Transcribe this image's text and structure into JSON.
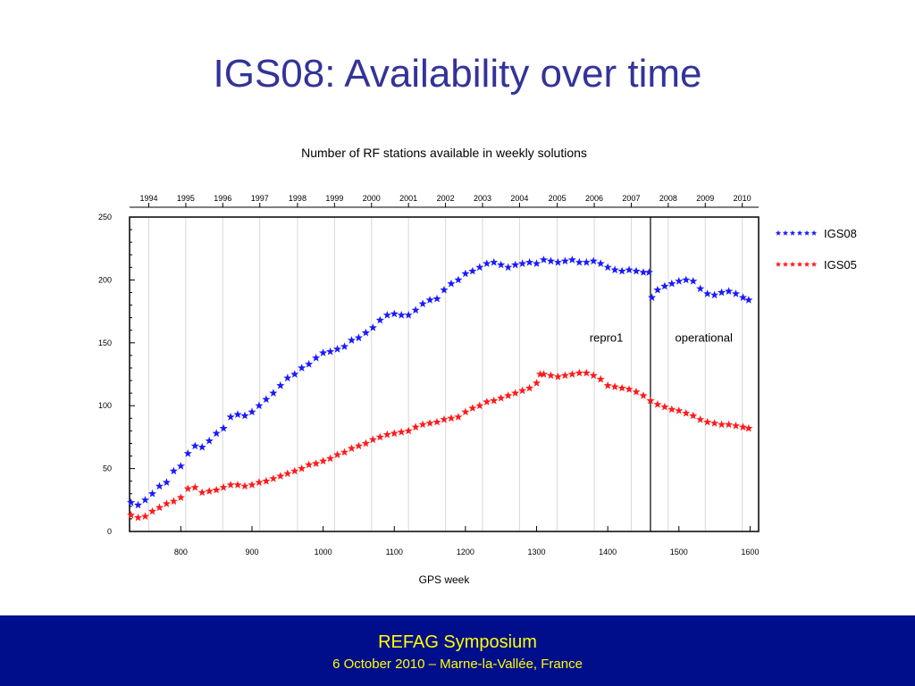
{
  "slide": {
    "title": "IGS08: Availability over time"
  },
  "footer": {
    "title": "REFAG Symposium",
    "subtitle": "6 October 2010 – Marne-la-Vallée, France"
  },
  "colors": {
    "title": "#333399",
    "footer_bg": "#000e8c",
    "footer_text": "#ffff00",
    "igs08": "#1a1aff",
    "igs05": "#ff1a1a"
  },
  "chart_data": {
    "type": "scatter",
    "title": "Number of RF stations available in weekly solutions",
    "xlabel": "GPS week",
    "ylabel": "",
    "xlim": [
      728,
      1612
    ],
    "ylim": [
      0,
      250
    ],
    "x_ticks": [
      800,
      900,
      1000,
      1100,
      1200,
      1300,
      1400,
      1500,
      1600
    ],
    "y_ticks": [
      0,
      50,
      100,
      150,
      200,
      250
    ],
    "top_axis_years": [
      {
        "label": "1994",
        "week": 755
      },
      {
        "label": "1995",
        "week": 807
      },
      {
        "label": "1996",
        "week": 859
      },
      {
        "label": "1997",
        "week": 911
      },
      {
        "label": "1998",
        "week": 964
      },
      {
        "label": "1999",
        "week": 1016
      },
      {
        "label": "2000",
        "week": 1068
      },
      {
        "label": "2001",
        "week": 1120
      },
      {
        "label": "2002",
        "week": 1172
      },
      {
        "label": "2003",
        "week": 1224
      },
      {
        "label": "2004",
        "week": 1276
      },
      {
        "label": "2005",
        "week": 1329
      },
      {
        "label": "2006",
        "week": 1381
      },
      {
        "label": "2007",
        "week": 1433
      },
      {
        "label": "2008",
        "week": 1485
      },
      {
        "label": "2009",
        "week": 1537
      },
      {
        "label": "2010",
        "week": 1589
      }
    ],
    "grid": "vertical",
    "divider_week": 1460,
    "annotations": [
      {
        "text": "repro1",
        "week": 1398,
        "y": 151
      },
      {
        "text": "operational",
        "week": 1535,
        "y": 151
      }
    ],
    "legend": "right",
    "series": [
      {
        "name": "IGS08",
        "marker": "star",
        "points": [
          [
            730,
            23
          ],
          [
            740,
            21
          ],
          [
            750,
            25
          ],
          [
            760,
            30
          ],
          [
            770,
            36
          ],
          [
            780,
            39
          ],
          [
            790,
            48
          ],
          [
            800,
            52
          ],
          [
            810,
            62
          ],
          [
            820,
            68
          ],
          [
            830,
            67
          ],
          [
            840,
            72
          ],
          [
            850,
            78
          ],
          [
            860,
            82
          ],
          [
            870,
            91
          ],
          [
            880,
            93
          ],
          [
            890,
            92
          ],
          [
            900,
            95
          ],
          [
            910,
            100
          ],
          [
            920,
            105
          ],
          [
            930,
            110
          ],
          [
            940,
            116
          ],
          [
            950,
            122
          ],
          [
            960,
            125
          ],
          [
            970,
            130
          ],
          [
            980,
            133
          ],
          [
            990,
            138
          ],
          [
            1000,
            142
          ],
          [
            1010,
            143
          ],
          [
            1020,
            145
          ],
          [
            1030,
            147
          ],
          [
            1040,
            152
          ],
          [
            1050,
            154
          ],
          [
            1060,
            158
          ],
          [
            1070,
            162
          ],
          [
            1080,
            168
          ],
          [
            1090,
            172
          ],
          [
            1100,
            173
          ],
          [
            1110,
            172
          ],
          [
            1120,
            172
          ],
          [
            1130,
            176
          ],
          [
            1140,
            181
          ],
          [
            1150,
            184
          ],
          [
            1160,
            185
          ],
          [
            1170,
            192
          ],
          [
            1180,
            197
          ],
          [
            1190,
            200
          ],
          [
            1200,
            205
          ],
          [
            1210,
            207
          ],
          [
            1220,
            210
          ],
          [
            1230,
            213
          ],
          [
            1240,
            214
          ],
          [
            1250,
            212
          ],
          [
            1260,
            210
          ],
          [
            1270,
            212
          ],
          [
            1280,
            213
          ],
          [
            1290,
            214
          ],
          [
            1300,
            213
          ],
          [
            1310,
            216
          ],
          [
            1320,
            215
          ],
          [
            1330,
            214
          ],
          [
            1340,
            215
          ],
          [
            1350,
            216
          ],
          [
            1360,
            214
          ],
          [
            1370,
            214
          ],
          [
            1380,
            215
          ],
          [
            1390,
            213
          ],
          [
            1400,
            210
          ],
          [
            1410,
            208
          ],
          [
            1420,
            207
          ],
          [
            1430,
            208
          ],
          [
            1440,
            207
          ],
          [
            1450,
            206
          ],
          [
            1458,
            206
          ],
          [
            1462,
            186
          ],
          [
            1470,
            192
          ],
          [
            1480,
            195
          ],
          [
            1490,
            197
          ],
          [
            1500,
            199
          ],
          [
            1510,
            200
          ],
          [
            1520,
            199
          ],
          [
            1530,
            193
          ],
          [
            1540,
            189
          ],
          [
            1550,
            188
          ],
          [
            1560,
            190
          ],
          [
            1570,
            191
          ],
          [
            1580,
            189
          ],
          [
            1590,
            186
          ],
          [
            1598,
            184
          ]
        ]
      },
      {
        "name": "IGS05",
        "marker": "star",
        "points": [
          [
            730,
            13
          ],
          [
            740,
            11
          ],
          [
            750,
            12
          ],
          [
            760,
            16
          ],
          [
            770,
            19
          ],
          [
            780,
            22
          ],
          [
            790,
            24
          ],
          [
            800,
            27
          ],
          [
            810,
            34
          ],
          [
            820,
            35
          ],
          [
            830,
            31
          ],
          [
            840,
            32
          ],
          [
            850,
            33
          ],
          [
            860,
            35
          ],
          [
            870,
            37
          ],
          [
            880,
            37
          ],
          [
            890,
            36
          ],
          [
            900,
            37
          ],
          [
            910,
            39
          ],
          [
            920,
            40
          ],
          [
            930,
            42
          ],
          [
            940,
            44
          ],
          [
            950,
            46
          ],
          [
            960,
            48
          ],
          [
            970,
            50
          ],
          [
            980,
            53
          ],
          [
            990,
            54
          ],
          [
            1000,
            56
          ],
          [
            1010,
            58
          ],
          [
            1020,
            61
          ],
          [
            1030,
            63
          ],
          [
            1040,
            66
          ],
          [
            1050,
            68
          ],
          [
            1060,
            70
          ],
          [
            1070,
            73
          ],
          [
            1080,
            75
          ],
          [
            1090,
            77
          ],
          [
            1100,
            78
          ],
          [
            1110,
            79
          ],
          [
            1120,
            80
          ],
          [
            1130,
            83
          ],
          [
            1140,
            85
          ],
          [
            1150,
            86
          ],
          [
            1160,
            87
          ],
          [
            1170,
            89
          ],
          [
            1180,
            90
          ],
          [
            1190,
            91
          ],
          [
            1200,
            95
          ],
          [
            1210,
            98
          ],
          [
            1220,
            100
          ],
          [
            1230,
            103
          ],
          [
            1240,
            104
          ],
          [
            1250,
            106
          ],
          [
            1260,
            108
          ],
          [
            1270,
            110
          ],
          [
            1280,
            112
          ],
          [
            1290,
            114
          ],
          [
            1300,
            118
          ],
          [
            1305,
            125
          ],
          [
            1310,
            125
          ],
          [
            1320,
            124
          ],
          [
            1330,
            123
          ],
          [
            1340,
            124
          ],
          [
            1350,
            125
          ],
          [
            1360,
            126
          ],
          [
            1370,
            126
          ],
          [
            1380,
            124
          ],
          [
            1390,
            121
          ],
          [
            1400,
            116
          ],
          [
            1410,
            115
          ],
          [
            1420,
            114
          ],
          [
            1430,
            113
          ],
          [
            1440,
            111
          ],
          [
            1450,
            108
          ],
          [
            1460,
            104
          ],
          [
            1470,
            101
          ],
          [
            1480,
            99
          ],
          [
            1490,
            97
          ],
          [
            1500,
            96
          ],
          [
            1510,
            94
          ],
          [
            1520,
            92
          ],
          [
            1530,
            89
          ],
          [
            1540,
            87
          ],
          [
            1550,
            86
          ],
          [
            1560,
            85
          ],
          [
            1570,
            85
          ],
          [
            1580,
            84
          ],
          [
            1590,
            83
          ],
          [
            1598,
            82
          ]
        ]
      }
    ]
  }
}
